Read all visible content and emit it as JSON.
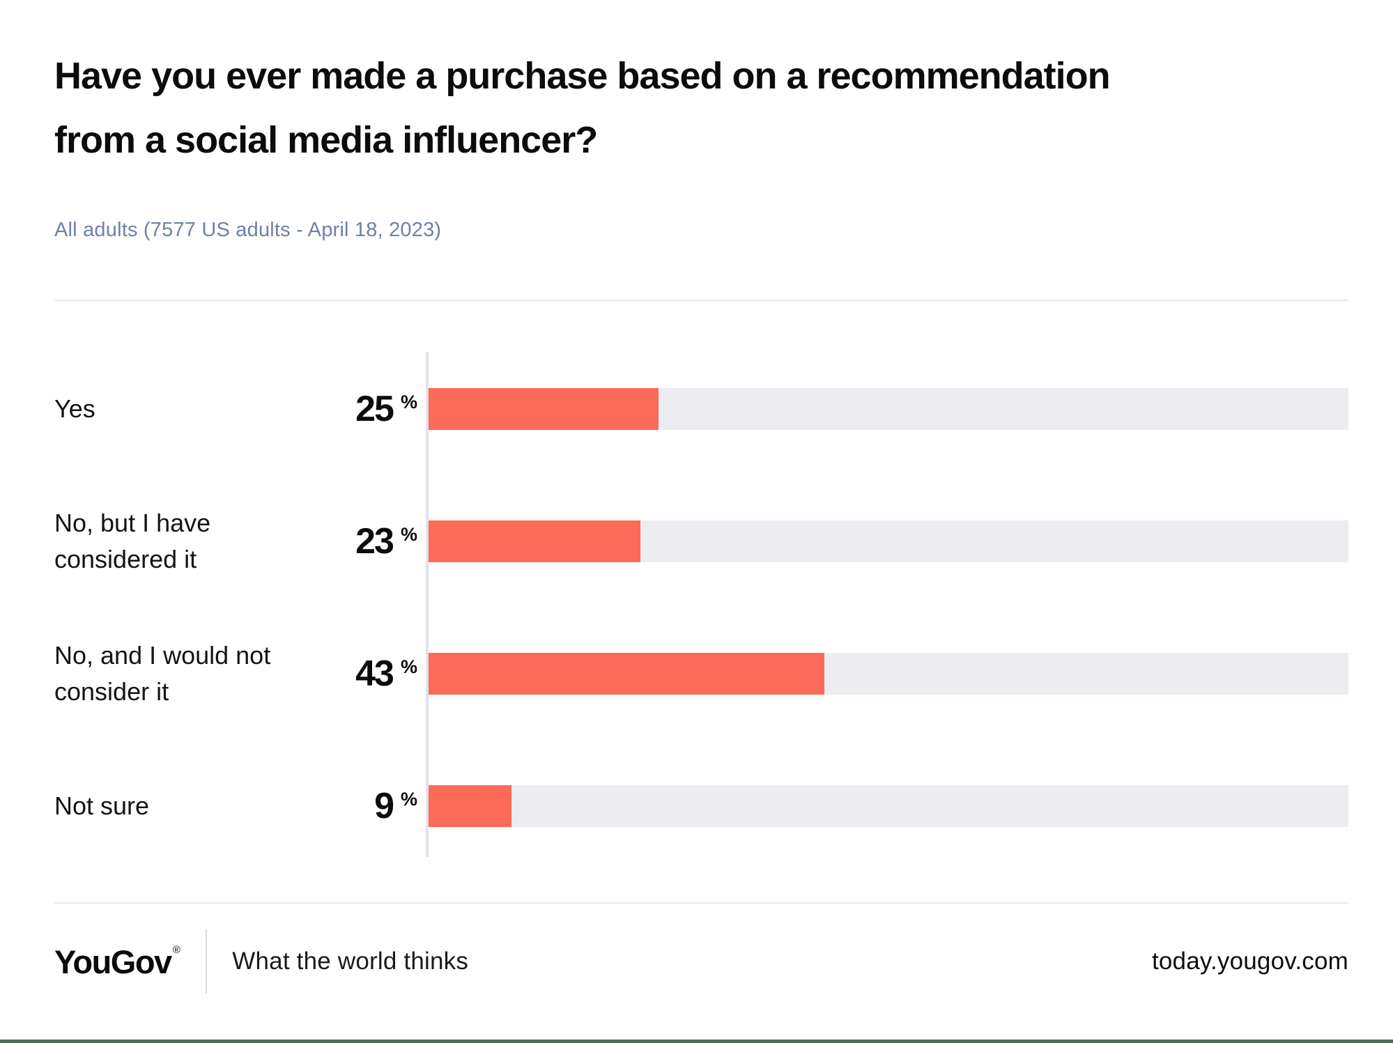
{
  "header": {
    "title": "Have you ever made a purchase based on a recommendation from a social media influencer?",
    "title_lines": [
      "Have you ever made a purchase based on a recommendation",
      "from a social media influencer?"
    ],
    "subtitle": "All adults (7577 US adults - April 18, 2023)"
  },
  "chart_data": {
    "type": "bar",
    "orientation": "horizontal",
    "title": "Have you ever made a purchase based on a recommendation from a social media influencer?",
    "subtitle": "All adults (7577 US adults - April 18, 2023)",
    "categories": [
      "Yes",
      "No, but I have considered it",
      "No, and I would not consider it",
      "Not sure"
    ],
    "values": [
      25,
      23,
      43,
      9
    ],
    "unit": "%",
    "xlim": [
      0,
      100
    ],
    "grid": false,
    "legend": false,
    "value_labels_position": "left-of-bar",
    "bar_color": "#fc6a58",
    "track_color": "#ededf1"
  },
  "footer": {
    "logo_text": "YouGov",
    "registered_mark": "®",
    "tagline": "What the world thinks",
    "site_url": "today.yougov.com"
  },
  "colors": {
    "accent_red": "#fc6a58",
    "track_gray": "#ededf1",
    "axis_gray": "#e1e3e8",
    "divider_gray": "#e7e9ed",
    "subtitle_blue_gray": "#6f80a6",
    "bottom_border_green": "#4a6e54",
    "text_black": "#0d0d0d"
  }
}
